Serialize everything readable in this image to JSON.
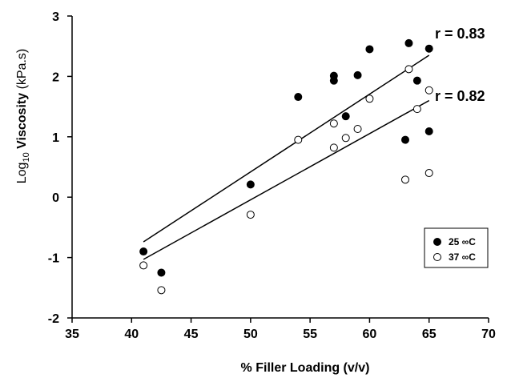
{
  "chart_data": {
    "type": "scatter",
    "xlabel": "% Filler Loading (v/v)",
    "ylabel_prefix": "Log",
    "ylabel_sub": "10",
    "ylabel_main": "Viscosity",
    "ylabel_unit": "(kPa.s)",
    "xlim": [
      35,
      70
    ],
    "ylim": [
      -2,
      3
    ],
    "xticks": [
      "35",
      "40",
      "45",
      "50",
      "55",
      "60",
      "65",
      "70"
    ],
    "yticks": [
      "-2",
      "-1",
      "0",
      "1",
      "2",
      "3"
    ],
    "grid": false,
    "legend_position": "bottom-right",
    "series": [
      {
        "name": "25 ∞C",
        "marker": "filled-circle",
        "color": "#000000",
        "points": [
          [
            41,
            -0.9
          ],
          [
            42.5,
            -1.25
          ],
          [
            50,
            0.21
          ],
          [
            54,
            1.66
          ],
          [
            57,
            2.01
          ],
          [
            57,
            1.93
          ],
          [
            58,
            1.34
          ],
          [
            59,
            2.02
          ],
          [
            60,
            2.45
          ],
          [
            63,
            0.95
          ],
          [
            63.3,
            2.55
          ],
          [
            64,
            1.93
          ],
          [
            65,
            2.46
          ],
          [
            65,
            1.09
          ]
        ],
        "fit": {
          "x": [
            41,
            65
          ],
          "y": [
            -0.74,
            2.35
          ],
          "label": "r = 0.83"
        }
      },
      {
        "name": "37 ∞C",
        "marker": "open-circle",
        "color": "#000000",
        "points": [
          [
            41,
            -1.13
          ],
          [
            42.5,
            -1.54
          ],
          [
            50,
            -0.29
          ],
          [
            54,
            0.95
          ],
          [
            57,
            1.22
          ],
          [
            57,
            0.82
          ],
          [
            58,
            0.98
          ],
          [
            59,
            1.13
          ],
          [
            60,
            1.63
          ],
          [
            63,
            0.29
          ],
          [
            63.3,
            2.12
          ],
          [
            64,
            1.46
          ],
          [
            65,
            1.77
          ],
          [
            65,
            0.4
          ]
        ],
        "fit": {
          "x": [
            41,
            65
          ],
          "y": [
            -1.03,
            1.6
          ],
          "label": "r = 0.82"
        }
      }
    ]
  }
}
